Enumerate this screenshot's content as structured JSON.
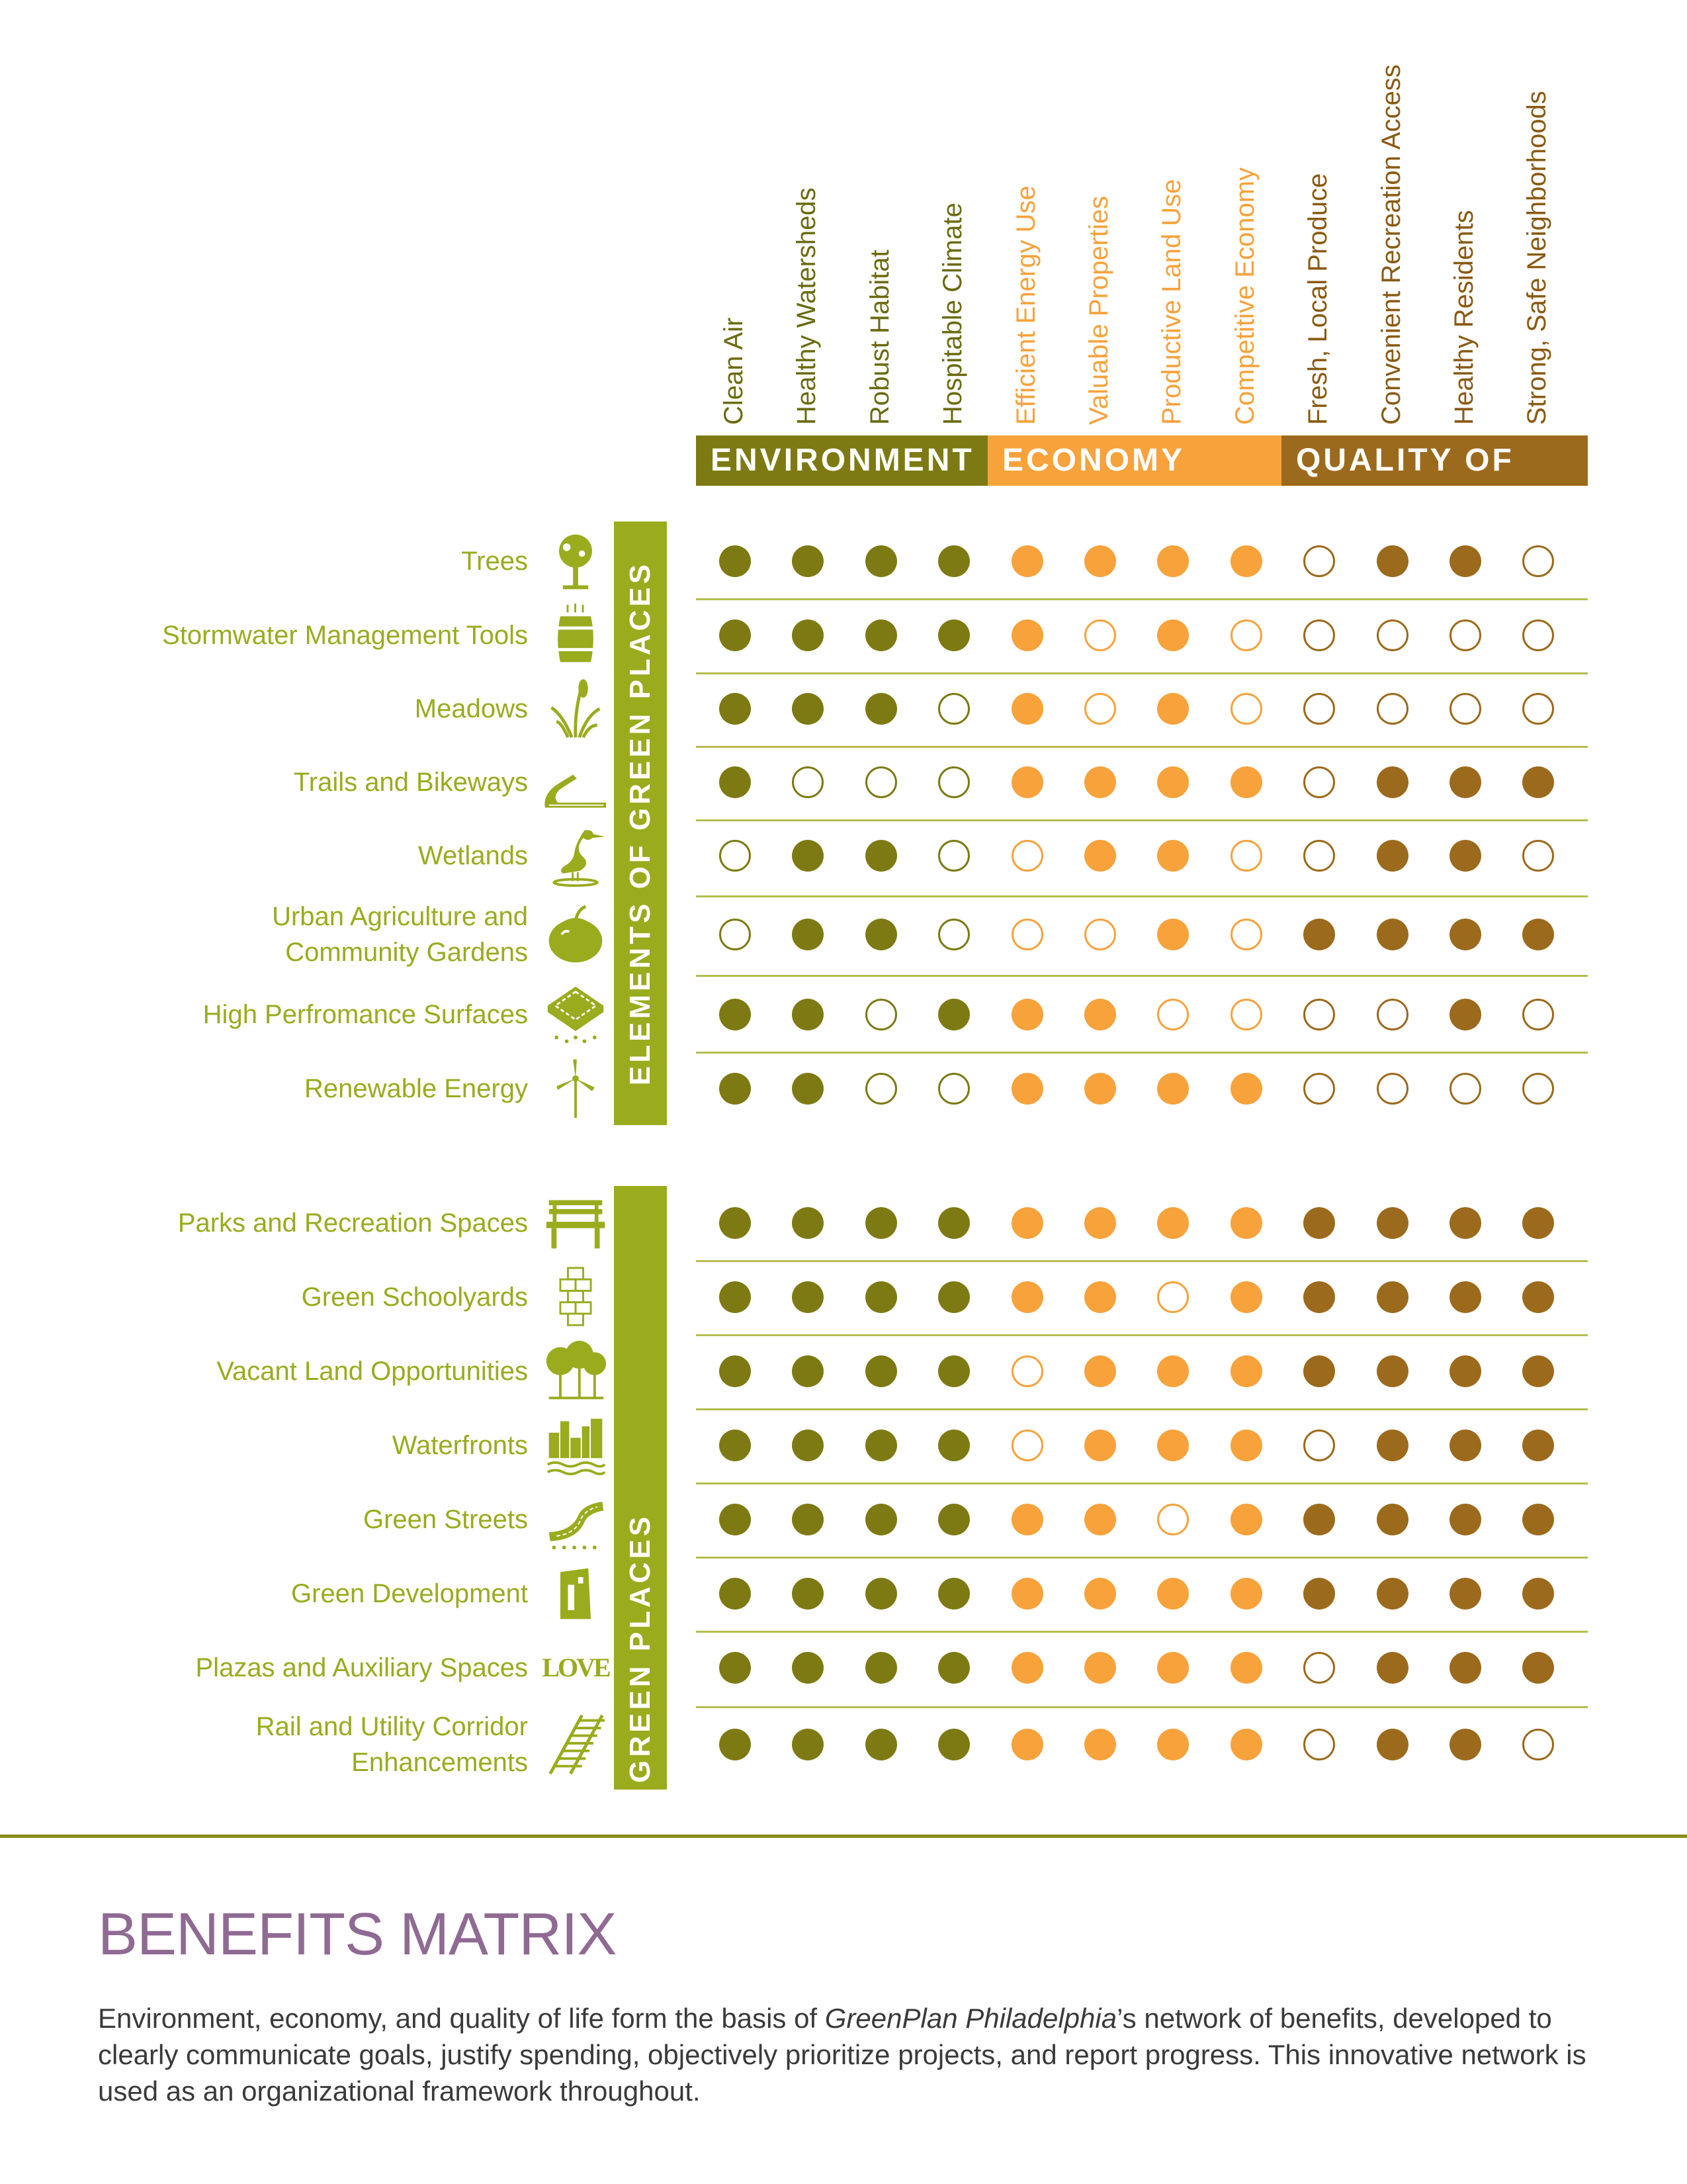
{
  "columns": [
    {
      "label": "Clean Air",
      "group": "env"
    },
    {
      "label": "Healthy Watersheds",
      "group": "env"
    },
    {
      "label": "Robust Habitat",
      "group": "env"
    },
    {
      "label": "Hospitable Climate",
      "group": "env"
    },
    {
      "label": "Efficient Energy Use",
      "group": "eco"
    },
    {
      "label": "Valuable Properties",
      "group": "eco"
    },
    {
      "label": "Productive Land Use",
      "group": "eco"
    },
    {
      "label": "Competitive Economy",
      "group": "eco"
    },
    {
      "label": "Fresh, Local Produce",
      "group": "qol"
    },
    {
      "label": "Convenient Recreation Access",
      "group": "qol"
    },
    {
      "label": "Healthy Residents",
      "group": "qol"
    },
    {
      "label": "Strong, Safe Neighborhoods",
      "group": "qol"
    }
  ],
  "categories": {
    "environment": "ENVIRONMENT",
    "economy": "ECONOMY",
    "quality_of_life": "QUALITY OF LIFE"
  },
  "colors": {
    "env": "#7d7a13",
    "eco": "#f7a23b",
    "qol": "#9c6a1c",
    "green_bar": "#9aab1e",
    "label": "#9aab1e",
    "title": "#8f6a93"
  },
  "sections": [
    {
      "title": "ELEMENTS OF GREEN PLACES",
      "rows": [
        {
          "label": [
            "Trees"
          ],
          "icon": "tree-icon",
          "marks": [
            1,
            1,
            1,
            1,
            1,
            1,
            1,
            1,
            0,
            1,
            1,
            0
          ]
        },
        {
          "label": [
            "Stormwater Management Tools"
          ],
          "icon": "rain-barrel-icon",
          "marks": [
            1,
            1,
            1,
            1,
            1,
            0,
            1,
            0,
            0,
            0,
            0,
            0
          ]
        },
        {
          "label": [
            "Meadows"
          ],
          "icon": "meadow-grass-icon",
          "marks": [
            1,
            1,
            1,
            0,
            1,
            0,
            1,
            0,
            0,
            0,
            0,
            0
          ]
        },
        {
          "label": [
            "Trails and Bikeways"
          ],
          "icon": "trail-icon",
          "marks": [
            1,
            0,
            0,
            0,
            1,
            1,
            1,
            1,
            0,
            1,
            1,
            1
          ]
        },
        {
          "label": [
            "Wetlands"
          ],
          "icon": "heron-icon",
          "marks": [
            0,
            1,
            1,
            0,
            0,
            1,
            1,
            0,
            0,
            1,
            1,
            0
          ]
        },
        {
          "label": [
            "Urban Agriculture and",
            "Community Gardens"
          ],
          "icon": "tomato-icon",
          "marks": [
            0,
            1,
            1,
            0,
            0,
            0,
            1,
            0,
            1,
            1,
            1,
            1
          ]
        },
        {
          "label": [
            "High Perfromance Surfaces"
          ],
          "icon": "permeable-surface-icon",
          "marks": [
            1,
            1,
            0,
            1,
            1,
            1,
            0,
            0,
            0,
            0,
            1,
            0
          ]
        },
        {
          "label": [
            "Renewable Energy"
          ],
          "icon": "wind-turbine-icon",
          "marks": [
            1,
            1,
            0,
            0,
            1,
            1,
            1,
            1,
            0,
            0,
            0,
            0
          ]
        }
      ]
    },
    {
      "title": "GREEN PLACES",
      "rows": [
        {
          "label": [
            "Parks and Recreation Spaces"
          ],
          "icon": "park-bench-icon",
          "marks": [
            1,
            1,
            1,
            1,
            1,
            1,
            1,
            1,
            1,
            1,
            1,
            1
          ]
        },
        {
          "label": [
            "Green Schoolyards"
          ],
          "icon": "hopscotch-icon",
          "marks": [
            1,
            1,
            1,
            1,
            1,
            1,
            0,
            1,
            1,
            1,
            1,
            1
          ]
        },
        {
          "label": [
            "Vacant Land Opportunities"
          ],
          "icon": "grove-icon",
          "marks": [
            1,
            1,
            1,
            1,
            0,
            1,
            1,
            1,
            1,
            1,
            1,
            1
          ]
        },
        {
          "label": [
            "Waterfronts"
          ],
          "icon": "waterfront-skyline-icon",
          "marks": [
            1,
            1,
            1,
            1,
            0,
            1,
            1,
            1,
            0,
            1,
            1,
            1
          ]
        },
        {
          "label": [
            "Green Streets"
          ],
          "icon": "green-street-icon",
          "marks": [
            1,
            1,
            1,
            1,
            1,
            1,
            0,
            1,
            1,
            1,
            1,
            1
          ]
        },
        {
          "label": [
            "Green Development"
          ],
          "icon": "building-icon",
          "marks": [
            1,
            1,
            1,
            1,
            1,
            1,
            1,
            1,
            1,
            1,
            1,
            1
          ]
        },
        {
          "label": [
            "Plazas and Auxiliary Spaces"
          ],
          "icon": "love-sculpture-icon",
          "icon_text": "LOVE",
          "marks": [
            1,
            1,
            1,
            1,
            1,
            1,
            1,
            1,
            0,
            1,
            1,
            1
          ]
        },
        {
          "label": [
            "Rail and Utility Corridor",
            "Enhancements"
          ],
          "icon": "rail-track-icon",
          "marks": [
            1,
            1,
            1,
            1,
            1,
            1,
            1,
            1,
            0,
            1,
            1,
            0
          ]
        }
      ]
    }
  ],
  "page_title": "BENEFITS MATRIX",
  "description": {
    "before": "Environment, economy, and quality of life form the basis of ",
    "italic": "GreenPlan Philadelphia",
    "after": "’s network of benefits, developed to clearly communicate goals, justify spending, objectively prioritize projects, and report progress. This innovative network is used as an organizational framework throughout."
  }
}
